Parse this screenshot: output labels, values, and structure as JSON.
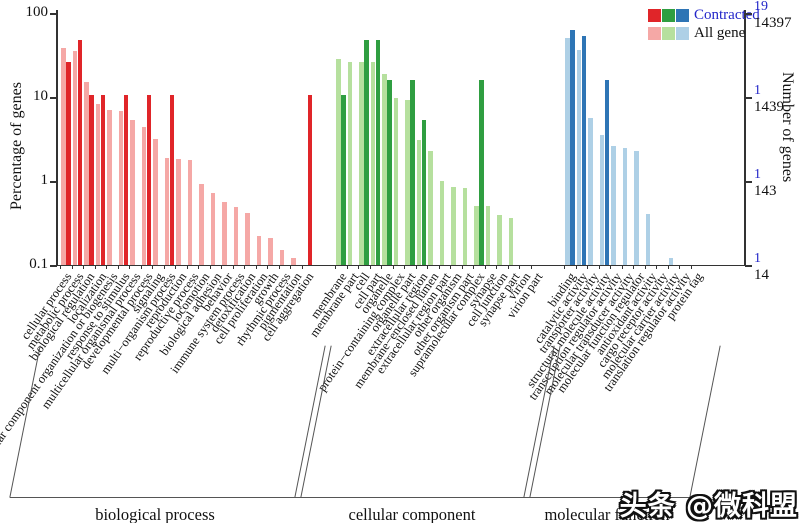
{
  "legend": {
    "contracted_label": "Contracted",
    "all_gene_label": "All gene",
    "contracted_text_color": "#2326c9",
    "all_gene_text_color": "#111111"
  },
  "axes": {
    "left_title": "Percentage of genes",
    "right_title": "Number of genes",
    "left_ticks": [
      "100",
      "10",
      "1",
      "0.1"
    ],
    "right_ticks_blue": [
      "19",
      "1",
      "1",
      "1"
    ],
    "right_ticks_black": [
      "14397",
      "1439",
      "143",
      "14"
    ]
  },
  "watermark": {
    "prefix": "头条 ",
    "handle": "@微科盟"
  },
  "colors": {
    "bp_dark": "#e02529",
    "bp_light": "#f5a8a6",
    "cc_dark": "#2f9e41",
    "cc_light": "#b6e09e",
    "mf_dark": "#2e75b5",
    "mf_light": "#aed0e6",
    "axis": "#333333",
    "bracket": "#555555"
  },
  "chart_data": {
    "type": "bar",
    "y_scale": "log",
    "ylim": [
      0.1,
      100
    ],
    "grid": false,
    "legend_position": "top-right",
    "series_names": [
      "Contracted",
      "All gene"
    ],
    "note_right_axis_pairs": "right axis shows gene counts: blue = Contracted total 19, black = All gene total 14397 at each decade",
    "sections": [
      {
        "label": "biological process",
        "dark_color": "#e02529",
        "light_color": "#f5a8a6",
        "terms": [
          {
            "name": "cellular process",
            "all_gene": 38,
            "contracted": 26.3
          },
          {
            "name": "metabolic process",
            "all_gene": 35.5,
            "contracted": 47.4
          },
          {
            "name": "biological regulation",
            "all_gene": 15,
            "contracted": 10.5
          },
          {
            "name": "localization",
            "all_gene": 8.3,
            "contracted": 10.5
          },
          {
            "name": "cellular component organization or biogenesis",
            "all_gene": 7.0,
            "contracted": null
          },
          {
            "name": "response to stimulus",
            "all_gene": 6.9,
            "contracted": 10.5
          },
          {
            "name": "multicellular organismal process",
            "all_gene": 5.3,
            "contracted": null
          },
          {
            "name": "developmental process",
            "all_gene": 4.4,
            "contracted": 10.5
          },
          {
            "name": "signaling",
            "all_gene": 3.2,
            "contracted": null
          },
          {
            "name": "multi−organism process",
            "all_gene": 1.9,
            "contracted": 10.5
          },
          {
            "name": "reproduction",
            "all_gene": 1.85,
            "contracted": null
          },
          {
            "name": "reproductive process",
            "all_gene": 1.8,
            "contracted": null
          },
          {
            "name": "locomotion",
            "all_gene": 0.93,
            "contracted": null
          },
          {
            "name": "biological adhesion",
            "all_gene": 0.72,
            "contracted": null
          },
          {
            "name": "behavior",
            "all_gene": 0.57,
            "contracted": null
          },
          {
            "name": "immune system process",
            "all_gene": 0.49,
            "contracted": null
          },
          {
            "name": "detoxification",
            "all_gene": 0.42,
            "contracted": null
          },
          {
            "name": "cell proliferation",
            "all_gene": 0.22,
            "contracted": null
          },
          {
            "name": "growth",
            "all_gene": 0.21,
            "contracted": null
          },
          {
            "name": "rhythmic process",
            "all_gene": 0.15,
            "contracted": null
          },
          {
            "name": "pigmentation",
            "all_gene": 0.12,
            "contracted": null
          },
          {
            "name": "cell aggregation",
            "all_gene": null,
            "contracted": 10.5
          }
        ]
      },
      {
        "label": "cellular component",
        "dark_color": "#2f9e41",
        "light_color": "#b6e09e",
        "terms": [
          {
            "name": "membrane",
            "all_gene": 28,
            "contracted": 10.5
          },
          {
            "name": "membrane part",
            "all_gene": 26,
            "contracted": null
          },
          {
            "name": "cell",
            "all_gene": 26,
            "contracted": 47.4
          },
          {
            "name": "cell part",
            "all_gene": 26,
            "contracted": 47.4
          },
          {
            "name": "organelle",
            "all_gene": 19,
            "contracted": 15.8
          },
          {
            "name": "protein−containing complex",
            "all_gene": 9.7,
            "contracted": null
          },
          {
            "name": "organelle part",
            "all_gene": 9.2,
            "contracted": 15.8
          },
          {
            "name": "extracellular region",
            "all_gene": 3.1,
            "contracted": 5.3
          },
          {
            "name": "membrane−enclosed lumen",
            "all_gene": 2.3,
            "contracted": null
          },
          {
            "name": "extracellular region part",
            "all_gene": 1.0,
            "contracted": null
          },
          {
            "name": "other organism",
            "all_gene": 0.86,
            "contracted": null
          },
          {
            "name": "other organism part",
            "all_gene": 0.83,
            "contracted": null
          },
          {
            "name": "supramolecular complex",
            "all_gene": 0.5,
            "contracted": 15.8
          },
          {
            "name": "synapse",
            "all_gene": 0.5,
            "contracted": null
          },
          {
            "name": "cell junction",
            "all_gene": 0.39,
            "contracted": null
          },
          {
            "name": "synapse part",
            "all_gene": 0.36,
            "contracted": null
          },
          {
            "name": "virion",
            "all_gene": null,
            "contracted": null
          },
          {
            "name": "virion part",
            "all_gene": null,
            "contracted": null
          }
        ]
      },
      {
        "label": "molecular function",
        "dark_color": "#2e75b5",
        "light_color": "#aed0e6",
        "terms": [
          {
            "name": "binding",
            "all_gene": 50,
            "contracted": 63.2
          },
          {
            "name": "catalytic activity",
            "all_gene": 36,
            "contracted": 52.6
          },
          {
            "name": "transporter activity",
            "all_gene": 5.7,
            "contracted": null
          },
          {
            "name": "structural molecule activity",
            "all_gene": 3.5,
            "contracted": 15.8
          },
          {
            "name": "transcription regulator activity",
            "all_gene": 2.6,
            "contracted": null
          },
          {
            "name": "molecular transducer activity",
            "all_gene": 2.5,
            "contracted": null
          },
          {
            "name": "molecular function regulator",
            "all_gene": 2.25,
            "contracted": null
          },
          {
            "name": "antioxidant activity",
            "all_gene": 0.4,
            "contracted": null
          },
          {
            "name": "cargo receptor activity",
            "all_gene": null,
            "contracted": null
          },
          {
            "name": "molecular carrier activity",
            "all_gene": 0.12,
            "contracted": null
          },
          {
            "name": "translation regulator activity",
            "all_gene": null,
            "contracted": null
          },
          {
            "name": "protein tag",
            "all_gene": null,
            "contracted": null
          }
        ]
      }
    ]
  }
}
